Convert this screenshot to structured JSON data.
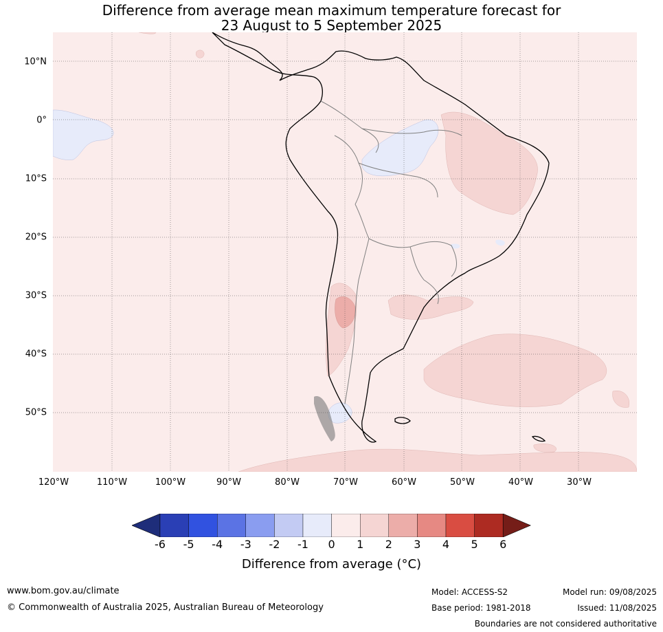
{
  "title_line1": "Difference from average mean maximum temperature forecast for",
  "title_line2": "23 August to 5 September 2025",
  "lat_labels": [
    "10°N",
    "0°",
    "10°S",
    "20°S",
    "30°S",
    "40°S",
    "50°S"
  ],
  "lon_labels": [
    "120°W",
    "110°W",
    "100°W",
    "90°W",
    "80°W",
    "70°W",
    "60°W",
    "50°W",
    "40°W",
    "30°W"
  ],
  "colorbar": {
    "ticks": [
      "-6",
      "-5",
      "-4",
      "-3",
      "-2",
      "-1",
      "0",
      "1",
      "2",
      "3",
      "4",
      "5",
      "6"
    ],
    "colors": [
      "#2a3fb5",
      "#3152e0",
      "#5b73e4",
      "#8a9df0",
      "#c3cbf3",
      "#e7ebfa",
      "#fbeceb",
      "#f5d5d3",
      "#ecada9",
      "#e68983",
      "#d94d42",
      "#ad2b22"
    ],
    "low_extend_color": "#1e2d7a",
    "high_extend_color": "#751d18",
    "label": "Difference from average (°C)"
  },
  "map_colors": {
    "background": "#fbeceb",
    "warm_1_2": "#f5d5d3",
    "warm_2_3": "#ecada9",
    "cool_0_-1": "#e7ebfa",
    "coast": "#000000",
    "border": "#808080"
  },
  "footer": {
    "website": "www.bom.gov.au/climate",
    "copyright": "© Commonwealth of Australia 2025, Australian Bureau of Meteorology",
    "model": "Model: ACCESS-S2",
    "base_period": "Base period: 1981-2018",
    "model_run": "Model run: 09/08/2025",
    "issued": "Issued: 11/08/2025",
    "disclaimer": "Boundaries are not considered authoritative"
  }
}
